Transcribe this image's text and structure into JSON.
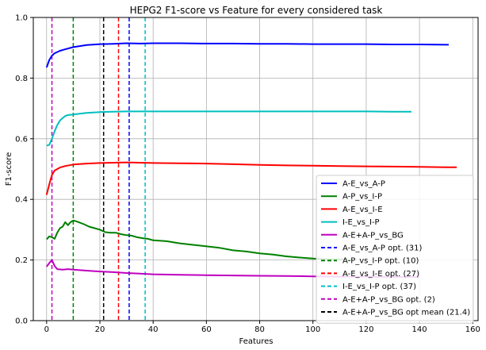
{
  "chart_data": {
    "type": "line",
    "title": "HEPG2 F1-score vs Feature for every considered task",
    "xlabel": "Features",
    "ylabel": "F1-score",
    "xlim": [
      -5,
      162
    ],
    "ylim": [
      0.0,
      1.0
    ],
    "xticks": [
      0,
      20,
      40,
      60,
      80,
      100,
      120,
      140,
      160
    ],
    "yticks": [
      0.0,
      0.2,
      0.4,
      0.6,
      0.8,
      1.0
    ],
    "ytick_labels": [
      "0.0",
      "0.2",
      "0.4",
      "0.6",
      "0.8",
      "1.0"
    ],
    "grid": true,
    "legend_position": "lower-right",
    "series": [
      {
        "name": "A-E_vs_A-P",
        "color": "#0000ff",
        "points": [
          [
            0,
            0.835
          ],
          [
            1,
            0.86
          ],
          [
            2,
            0.874
          ],
          [
            3,
            0.882
          ],
          [
            5,
            0.89
          ],
          [
            7,
            0.895
          ],
          [
            10,
            0.902
          ],
          [
            15,
            0.909
          ],
          [
            20,
            0.912
          ],
          [
            25,
            0.913
          ],
          [
            30,
            0.915
          ],
          [
            35,
            0.914
          ],
          [
            40,
            0.915
          ],
          [
            50,
            0.915
          ],
          [
            60,
            0.914
          ],
          [
            70,
            0.914
          ],
          [
            80,
            0.913
          ],
          [
            90,
            0.913
          ],
          [
            100,
            0.912
          ],
          [
            110,
            0.912
          ],
          [
            120,
            0.912
          ],
          [
            130,
            0.911
          ],
          [
            140,
            0.911
          ],
          [
            151,
            0.91
          ]
        ]
      },
      {
        "name": "A-P_vs_I-P",
        "color": "#008000",
        "points": [
          [
            0,
            0.268
          ],
          [
            1,
            0.278
          ],
          [
            2,
            0.275
          ],
          [
            3,
            0.27
          ],
          [
            4,
            0.29
          ],
          [
            5,
            0.305
          ],
          [
            6,
            0.31
          ],
          [
            7,
            0.325
          ],
          [
            8,
            0.315
          ],
          [
            9,
            0.325
          ],
          [
            10,
            0.33
          ],
          [
            11,
            0.328
          ],
          [
            12,
            0.325
          ],
          [
            14,
            0.318
          ],
          [
            16,
            0.31
          ],
          [
            18,
            0.305
          ],
          [
            20,
            0.3
          ],
          [
            22,
            0.292
          ],
          [
            24,
            0.29
          ],
          [
            26,
            0.29
          ],
          [
            28,
            0.285
          ],
          [
            30,
            0.282
          ],
          [
            32,
            0.28
          ],
          [
            34,
            0.275
          ],
          [
            36,
            0.272
          ],
          [
            38,
            0.27
          ],
          [
            40,
            0.265
          ],
          [
            45,
            0.262
          ],
          [
            50,
            0.255
          ],
          [
            55,
            0.25
          ],
          [
            60,
            0.245
          ],
          [
            65,
            0.24
          ],
          [
            70,
            0.232
          ],
          [
            75,
            0.228
          ],
          [
            80,
            0.222
          ],
          [
            85,
            0.218
          ],
          [
            90,
            0.212
          ],
          [
            95,
            0.208
          ],
          [
            100,
            0.205
          ],
          [
            105,
            0.203
          ],
          [
            110,
            0.202
          ],
          [
            115,
            0.2
          ]
        ]
      },
      {
        "name": "A-E_vs_I-E",
        "color": "#ff0000",
        "points": [
          [
            0,
            0.415
          ],
          [
            1,
            0.45
          ],
          [
            2,
            0.48
          ],
          [
            3,
            0.495
          ],
          [
            5,
            0.505
          ],
          [
            7,
            0.51
          ],
          [
            10,
            0.515
          ],
          [
            15,
            0.518
          ],
          [
            20,
            0.52
          ],
          [
            25,
            0.521
          ],
          [
            30,
            0.522
          ],
          [
            40,
            0.52
          ],
          [
            50,
            0.519
          ],
          [
            60,
            0.518
          ],
          [
            70,
            0.516
          ],
          [
            80,
            0.514
          ],
          [
            90,
            0.512
          ],
          [
            100,
            0.511
          ],
          [
            110,
            0.51
          ],
          [
            120,
            0.509
          ],
          [
            130,
            0.508
          ],
          [
            140,
            0.507
          ],
          [
            150,
            0.506
          ],
          [
            154,
            0.506
          ]
        ]
      },
      {
        "name": "I-E_vs_I-P",
        "color": "#00bfbf",
        "points": [
          [
            0,
            0.577
          ],
          [
            1,
            0.58
          ],
          [
            2,
            0.6
          ],
          [
            3,
            0.625
          ],
          [
            4,
            0.645
          ],
          [
            5,
            0.66
          ],
          [
            6,
            0.668
          ],
          [
            7,
            0.675
          ],
          [
            8,
            0.678
          ],
          [
            10,
            0.68
          ],
          [
            15,
            0.685
          ],
          [
            20,
            0.688
          ],
          [
            25,
            0.689
          ],
          [
            30,
            0.69
          ],
          [
            40,
            0.69
          ],
          [
            50,
            0.69
          ],
          [
            60,
            0.69
          ],
          [
            70,
            0.69
          ],
          [
            80,
            0.69
          ],
          [
            90,
            0.69
          ],
          [
            100,
            0.69
          ],
          [
            110,
            0.69
          ],
          [
            120,
            0.69
          ],
          [
            130,
            0.689
          ],
          [
            137,
            0.689
          ]
        ]
      },
      {
        "name": "A-E+A-P_vs_BG",
        "color": "#bf00bf",
        "points": [
          [
            0,
            0.178
          ],
          [
            1,
            0.19
          ],
          [
            2,
            0.2
          ],
          [
            3,
            0.18
          ],
          [
            4,
            0.17
          ],
          [
            6,
            0.168
          ],
          [
            8,
            0.17
          ],
          [
            10,
            0.168
          ],
          [
            15,
            0.165
          ],
          [
            20,
            0.162
          ],
          [
            25,
            0.16
          ],
          [
            30,
            0.157
          ],
          [
            35,
            0.155
          ],
          [
            40,
            0.153
          ],
          [
            50,
            0.151
          ],
          [
            60,
            0.15
          ],
          [
            70,
            0.149
          ],
          [
            80,
            0.148
          ],
          [
            90,
            0.147
          ],
          [
            100,
            0.146
          ],
          [
            110,
            0.145
          ],
          [
            120,
            0.145
          ],
          [
            130,
            0.144
          ],
          [
            140,
            0.144
          ]
        ]
      }
    ],
    "vlines": [
      {
        "name": "A-E_vs_A-P opt. (31)",
        "x": 31,
        "color": "#0000ff"
      },
      {
        "name": "A-P_vs_I-P opt. (10)",
        "x": 10,
        "color": "#008000"
      },
      {
        "name": "A-E_vs_I-E opt. (27)",
        "x": 27,
        "color": "#ff0000"
      },
      {
        "name": "I-E_vs_I-P opt. (37)",
        "x": 37,
        "color": "#00bfbf"
      },
      {
        "name": "A-E+A-P_vs_BG opt. (2)",
        "x": 2,
        "color": "#bf00bf"
      },
      {
        "name": "A-E+A-P_vs_BG opt mean (21.4)",
        "x": 21.4,
        "color": "#000000"
      }
    ]
  }
}
